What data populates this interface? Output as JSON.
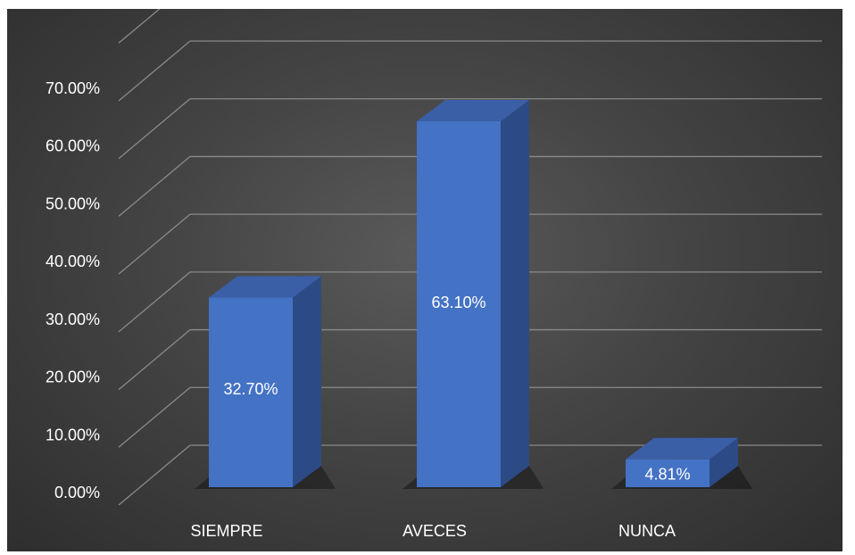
{
  "chart_data": {
    "type": "bar",
    "title": "",
    "xlabel": "",
    "ylabel": "",
    "categories": [
      "SIEMPRE",
      "AVECES",
      "NUNCA"
    ],
    "values": [
      32.7,
      63.1,
      4.81
    ],
    "data_labels": [
      "32.70%",
      "63.10%",
      "4.81%"
    ],
    "ylim": [
      0,
      70
    ],
    "yticks": [
      0,
      10,
      20,
      30,
      40,
      50,
      60,
      70
    ],
    "ytick_labels": [
      "0.00%",
      "10.00%",
      "20.00%",
      "30.00%",
      "40.00%",
      "50.00%",
      "60.00%",
      "70.00%"
    ],
    "grid": true,
    "legend": "none",
    "style": "3d-column",
    "colors": {
      "bar_front": "#4472c4",
      "bar_top": "#3b5fa6",
      "bar_side": "#2c4a85",
      "grid": "#8a8a8a",
      "text": "#ffffff"
    }
  }
}
